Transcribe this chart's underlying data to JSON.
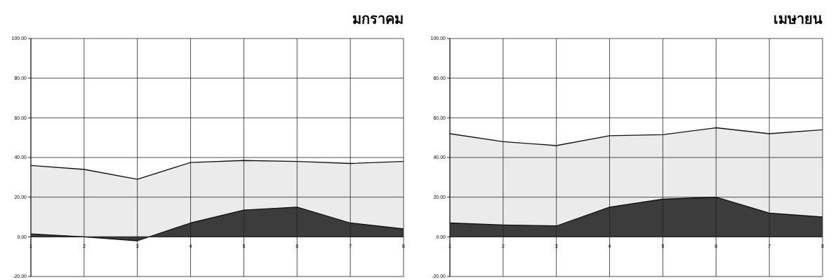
{
  "chart_data": [
    {
      "type": "area",
      "title": "มกราคม",
      "categories": [
        "1",
        "2",
        "3",
        "4",
        "5",
        "6",
        "7",
        "8"
      ],
      "series": [
        {
          "color": "#ebebeb",
          "values": [
            36,
            34,
            29,
            37.5,
            38.5,
            38,
            37,
            38
          ]
        },
        {
          "color": "#3c3c3c",
          "values": [
            1.5,
            0,
            -2,
            7,
            13.5,
            15,
            7,
            4
          ]
        }
      ],
      "ylim": [
        -20,
        100
      ],
      "yticks": [
        {
          "value": -20,
          "label": "-20.00"
        },
        {
          "value": 0,
          "label": "0.00"
        },
        {
          "value": 20,
          "label": "20.00"
        },
        {
          "value": 40,
          "label": "40.00"
        },
        {
          "value": 60,
          "label": "60.00"
        },
        {
          "value": 80,
          "label": "80.00"
        },
        {
          "value": 100,
          "label": "100.00"
        }
      ],
      "grid": true
    },
    {
      "type": "area",
      "title": "เมษายน",
      "categories": [
        "1",
        "2",
        "3",
        "4",
        "5",
        "6",
        "7",
        "8"
      ],
      "series": [
        {
          "color": "#ebebeb",
          "values": [
            52,
            48,
            46,
            51,
            51.5,
            55,
            52,
            54
          ]
        },
        {
          "color": "#3c3c3c",
          "values": [
            7,
            6,
            5.5,
            15,
            19,
            20,
            12,
            10
          ]
        }
      ],
      "ylim": [
        -20,
        100
      ],
      "yticks": [
        {
          "value": -20,
          "label": "-20.00"
        },
        {
          "value": 0,
          "label": "0.00"
        },
        {
          "value": 20,
          "label": "20.00"
        },
        {
          "value": 40,
          "label": "40.00"
        },
        {
          "value": 60,
          "label": "60.00"
        },
        {
          "value": 80,
          "label": "80.00"
        },
        {
          "value": 100,
          "label": "100.00"
        }
      ],
      "grid": true
    }
  ]
}
